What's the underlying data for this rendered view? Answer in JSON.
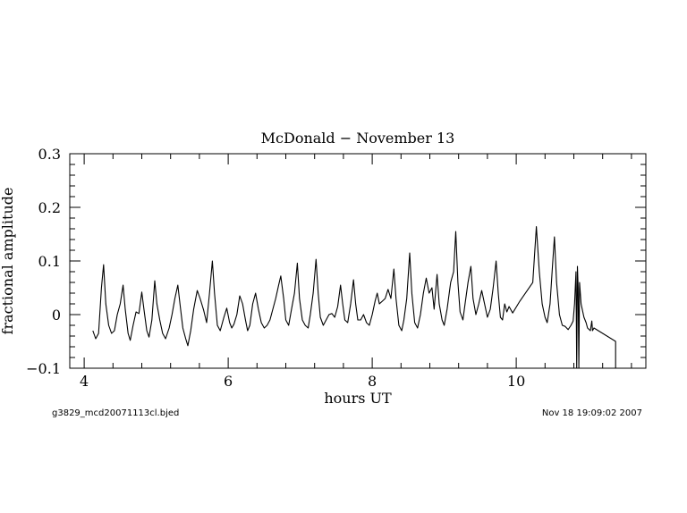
{
  "chart_data": {
    "type": "line",
    "title": "McDonald − November 13",
    "xlabel": "hours UT",
    "ylabel": "fractional amplitude",
    "xlim": [
      3.8,
      11.8
    ],
    "ylim": [
      -0.1,
      0.3
    ],
    "x_ticks": [
      4,
      6,
      8,
      10
    ],
    "x_tick_labels": [
      "4",
      "6",
      "8",
      "10"
    ],
    "y_ticks": [
      -0.1,
      0,
      0.1,
      0.2,
      0.3
    ],
    "y_tick_labels": [
      "−0.1",
      "0",
      "0.1",
      "0.2",
      "0.3"
    ],
    "grid": false,
    "footer_left": "g3829_mcd20071113cl.bjed",
    "footer_right": "Nov 18 19:09:02 2007",
    "series": [
      {
        "line_color": "#000000",
        "points": [
          [
            4.12,
            -0.03
          ],
          [
            4.16,
            -0.045
          ],
          [
            4.2,
            -0.035
          ],
          [
            4.24,
            0.05
          ],
          [
            4.27,
            0.093
          ],
          [
            4.3,
            0.02
          ],
          [
            4.34,
            -0.02
          ],
          [
            4.38,
            -0.035
          ],
          [
            4.42,
            -0.03
          ],
          [
            4.46,
            0.0
          ],
          [
            4.5,
            0.02
          ],
          [
            4.54,
            0.055
          ],
          [
            4.57,
            0.01
          ],
          [
            4.61,
            -0.035
          ],
          [
            4.64,
            -0.048
          ],
          [
            4.68,
            -0.02
          ],
          [
            4.72,
            0.005
          ],
          [
            4.76,
            0.002
          ],
          [
            4.8,
            0.042
          ],
          [
            4.83,
            0.01
          ],
          [
            4.87,
            -0.03
          ],
          [
            4.9,
            -0.042
          ],
          [
            4.94,
            -0.01
          ],
          [
            4.98,
            0.063
          ],
          [
            5.01,
            0.02
          ],
          [
            5.05,
            -0.01
          ],
          [
            5.09,
            -0.035
          ],
          [
            5.13,
            -0.045
          ],
          [
            5.18,
            -0.025
          ],
          [
            5.22,
            0.0
          ],
          [
            5.26,
            0.03
          ],
          [
            5.3,
            0.055
          ],
          [
            5.33,
            0.02
          ],
          [
            5.37,
            -0.025
          ],
          [
            5.41,
            -0.045
          ],
          [
            5.44,
            -0.058
          ],
          [
            5.48,
            -0.03
          ],
          [
            5.52,
            0.01
          ],
          [
            5.57,
            0.045
          ],
          [
            5.61,
            0.03
          ],
          [
            5.66,
            0.008
          ],
          [
            5.7,
            -0.015
          ],
          [
            5.74,
            0.04
          ],
          [
            5.78,
            0.1
          ],
          [
            5.81,
            0.04
          ],
          [
            5.85,
            -0.02
          ],
          [
            5.89,
            -0.03
          ],
          [
            5.94,
            -0.005
          ],
          [
            5.98,
            0.012
          ],
          [
            6.02,
            -0.015
          ],
          [
            6.05,
            -0.025
          ],
          [
            6.08,
            -0.018
          ],
          [
            6.12,
            0.0
          ],
          [
            6.16,
            0.035
          ],
          [
            6.2,
            0.02
          ],
          [
            6.24,
            -0.01
          ],
          [
            6.27,
            -0.03
          ],
          [
            6.3,
            -0.02
          ],
          [
            6.34,
            0.02
          ],
          [
            6.38,
            0.04
          ],
          [
            6.42,
            0.01
          ],
          [
            6.46,
            -0.015
          ],
          [
            6.5,
            -0.025
          ],
          [
            6.54,
            -0.02
          ],
          [
            6.58,
            -0.01
          ],
          [
            6.62,
            0.01
          ],
          [
            6.66,
            0.03
          ],
          [
            6.7,
            0.055
          ],
          [
            6.73,
            0.072
          ],
          [
            6.77,
            0.03
          ],
          [
            6.8,
            -0.01
          ],
          [
            6.84,
            -0.02
          ],
          [
            6.88,
            0.01
          ],
          [
            6.92,
            0.04
          ],
          [
            6.96,
            0.096
          ],
          [
            6.99,
            0.03
          ],
          [
            7.03,
            -0.01
          ],
          [
            7.07,
            -0.02
          ],
          [
            7.11,
            -0.025
          ],
          [
            7.14,
            0.0
          ],
          [
            7.18,
            0.04
          ],
          [
            7.22,
            0.103
          ],
          [
            7.25,
            0.04
          ],
          [
            7.28,
            -0.005
          ],
          [
            7.32,
            -0.02
          ],
          [
            7.36,
            -0.01
          ],
          [
            7.4,
            0.0
          ],
          [
            7.44,
            0.002
          ],
          [
            7.48,
            -0.005
          ],
          [
            7.52,
            0.015
          ],
          [
            7.56,
            0.055
          ],
          [
            7.59,
            0.02
          ],
          [
            7.62,
            -0.01
          ],
          [
            7.66,
            -0.015
          ],
          [
            7.7,
            0.02
          ],
          [
            7.74,
            0.065
          ],
          [
            7.77,
            0.02
          ],
          [
            7.8,
            -0.01
          ],
          [
            7.84,
            -0.01
          ],
          [
            7.88,
            0.0
          ],
          [
            7.92,
            -0.015
          ],
          [
            7.96,
            -0.02
          ],
          [
            8.0,
            0.0
          ],
          [
            8.04,
            0.025
          ],
          [
            8.07,
            0.04
          ],
          [
            8.1,
            0.02
          ],
          [
            8.14,
            0.025
          ],
          [
            8.18,
            0.03
          ],
          [
            8.22,
            0.047
          ],
          [
            8.26,
            0.03
          ],
          [
            8.3,
            0.085
          ],
          [
            8.33,
            0.03
          ],
          [
            8.37,
            -0.02
          ],
          [
            8.41,
            -0.03
          ],
          [
            8.44,
            -0.01
          ],
          [
            8.48,
            0.03
          ],
          [
            8.52,
            0.115
          ],
          [
            8.55,
            0.04
          ],
          [
            8.59,
            -0.015
          ],
          [
            8.63,
            -0.025
          ],
          [
            8.67,
            0.0
          ],
          [
            8.71,
            0.04
          ],
          [
            8.75,
            0.068
          ],
          [
            8.79,
            0.04
          ],
          [
            8.83,
            0.05
          ],
          [
            8.86,
            0.01
          ],
          [
            8.9,
            0.075
          ],
          [
            8.93,
            0.02
          ],
          [
            8.97,
            -0.01
          ],
          [
            9.0,
            -0.02
          ],
          [
            9.04,
            0.01
          ],
          [
            9.09,
            0.06
          ],
          [
            9.13,
            0.08
          ],
          [
            9.16,
            0.155
          ],
          [
            9.19,
            0.06
          ],
          [
            9.22,
            0.005
          ],
          [
            9.26,
            -0.01
          ],
          [
            9.29,
            0.02
          ],
          [
            9.33,
            0.06
          ],
          [
            9.37,
            0.09
          ],
          [
            9.4,
            0.03
          ],
          [
            9.44,
            0.0
          ],
          [
            9.48,
            0.02
          ],
          [
            9.52,
            0.045
          ],
          [
            9.56,
            0.02
          ],
          [
            9.6,
            -0.005
          ],
          [
            9.64,
            0.01
          ],
          [
            9.68,
            0.05
          ],
          [
            9.72,
            0.1
          ],
          [
            9.75,
            0.04
          ],
          [
            9.78,
            -0.005
          ],
          [
            9.81,
            -0.01
          ],
          [
            9.84,
            0.02
          ],
          [
            9.87,
            0.005
          ],
          [
            9.9,
            0.015
          ],
          [
            9.95,
            0.003
          ],
          [
            10.05,
            0.025
          ],
          [
            10.23,
            0.06
          ],
          [
            10.28,
            0.164
          ],
          [
            10.32,
            0.08
          ],
          [
            10.36,
            0.02
          ],
          [
            10.4,
            -0.005
          ],
          [
            10.43,
            -0.015
          ],
          [
            10.47,
            0.02
          ],
          [
            10.5,
            0.085
          ],
          [
            10.53,
            0.145
          ],
          [
            10.56,
            0.06
          ],
          [
            10.6,
            0.0
          ],
          [
            10.64,
            -0.02
          ],
          [
            10.68,
            -0.022
          ],
          [
            10.72,
            -0.028
          ],
          [
            10.76,
            -0.02
          ],
          [
            10.79,
            -0.012
          ],
          [
            10.81,
            0.02
          ],
          [
            10.83,
            0.08
          ],
          [
            10.84,
            -0.1
          ],
          [
            10.85,
            0.09
          ],
          [
            10.86,
            0.05
          ],
          [
            10.87,
            -0.1
          ],
          [
            10.88,
            0.06
          ],
          [
            10.9,
            0.02
          ],
          [
            10.94,
            -0.005
          ],
          [
            10.97,
            -0.015
          ],
          [
            10.99,
            -0.025
          ],
          [
            11.03,
            -0.03
          ],
          [
            11.05,
            -0.012
          ],
          [
            11.06,
            -0.03
          ],
          [
            11.08,
            -0.025
          ],
          [
            11.38,
            -0.05
          ],
          [
            11.38,
            -0.1
          ]
        ]
      }
    ]
  }
}
